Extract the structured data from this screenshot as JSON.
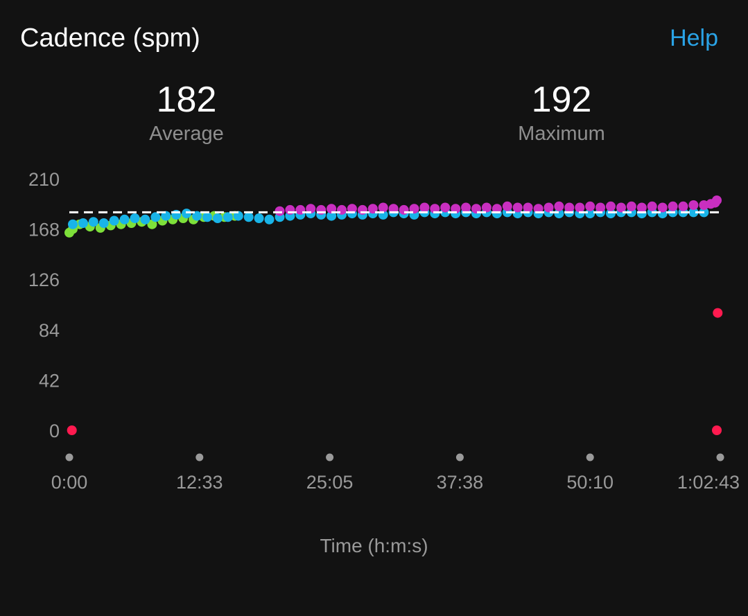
{
  "header": {
    "title": "Cadence (spm)",
    "help_label": "Help"
  },
  "stats": {
    "average": {
      "value": "182",
      "label": "Average"
    },
    "maximum": {
      "value": "192",
      "label": "Maximum"
    }
  },
  "colors": {
    "background": "#121212",
    "link": "#2aa3e6",
    "zone_green": "#7ee03a",
    "zone_blue": "#19b4e8",
    "zone_purple": "#c92fc0",
    "zone_red": "#ff1a4f",
    "average_line": "#ffffff"
  },
  "chart_data": {
    "type": "scatter",
    "xlabel": "Time (h:m:s)",
    "ylabel": "",
    "ylim": [
      0,
      210
    ],
    "yticks": [
      0,
      42,
      84,
      126,
      168,
      210
    ],
    "xlim": [
      0,
      3763
    ],
    "xticks": [
      "0:00",
      "12:33",
      "25:05",
      "37:38",
      "50:10",
      "1:02:43"
    ],
    "average_line": 182,
    "grid": false,
    "series": [
      {
        "color": "zone_green",
        "points": [
          [
            0,
            165
          ],
          [
            20,
            168
          ],
          [
            60,
            172
          ],
          [
            120,
            170
          ],
          [
            180,
            169
          ],
          [
            240,
            171
          ],
          [
            300,
            172
          ],
          [
            360,
            173
          ],
          [
            420,
            174
          ],
          [
            480,
            172
          ],
          [
            540,
            175
          ],
          [
            600,
            176
          ],
          [
            660,
            177
          ],
          [
            720,
            176
          ],
          [
            780,
            178
          ],
          [
            840,
            179
          ],
          [
            900,
            178
          ],
          [
            960,
            179
          ]
        ]
      },
      {
        "color": "zone_blue",
        "points": [
          [
            20,
            172
          ],
          [
            80,
            173
          ],
          [
            140,
            174
          ],
          [
            200,
            173
          ],
          [
            260,
            175
          ],
          [
            320,
            176
          ],
          [
            380,
            177
          ],
          [
            440,
            176
          ],
          [
            500,
            178
          ],
          [
            560,
            179
          ],
          [
            620,
            180
          ],
          [
            680,
            181
          ],
          [
            740,
            179
          ],
          [
            800,
            178
          ],
          [
            860,
            177
          ],
          [
            920,
            178
          ],
          [
            980,
            179
          ],
          [
            1040,
            178
          ],
          [
            1100,
            177
          ],
          [
            1160,
            176
          ],
          [
            1220,
            178
          ],
          [
            1280,
            179
          ],
          [
            1340,
            180
          ],
          [
            1400,
            181
          ],
          [
            1460,
            180
          ],
          [
            1520,
            179
          ],
          [
            1580,
            180
          ],
          [
            1640,
            181
          ],
          [
            1700,
            180
          ],
          [
            1760,
            181
          ],
          [
            1820,
            180
          ],
          [
            1880,
            182
          ],
          [
            1940,
            181
          ],
          [
            2000,
            180
          ],
          [
            2060,
            182
          ],
          [
            2120,
            181
          ],
          [
            2180,
            182
          ],
          [
            2240,
            181
          ],
          [
            2300,
            182
          ],
          [
            2360,
            181
          ],
          [
            2420,
            182
          ],
          [
            2480,
            181
          ],
          [
            2540,
            182
          ],
          [
            2600,
            181
          ],
          [
            2660,
            182
          ],
          [
            2720,
            181
          ],
          [
            2780,
            182
          ],
          [
            2840,
            181
          ],
          [
            2900,
            182
          ],
          [
            2960,
            181
          ],
          [
            3020,
            181
          ],
          [
            3080,
            182
          ],
          [
            3140,
            181
          ],
          [
            3200,
            182
          ],
          [
            3260,
            182
          ],
          [
            3320,
            181
          ],
          [
            3380,
            182
          ],
          [
            3440,
            181
          ],
          [
            3500,
            182
          ],
          [
            3560,
            182
          ],
          [
            3620,
            182
          ],
          [
            3680,
            182
          ]
        ]
      },
      {
        "color": "zone_purple",
        "points": [
          [
            1220,
            183
          ],
          [
            1280,
            184
          ],
          [
            1340,
            184
          ],
          [
            1400,
            185
          ],
          [
            1460,
            184
          ],
          [
            1520,
            185
          ],
          [
            1580,
            184
          ],
          [
            1640,
            185
          ],
          [
            1700,
            184
          ],
          [
            1760,
            185
          ],
          [
            1820,
            186
          ],
          [
            1880,
            185
          ],
          [
            1940,
            184
          ],
          [
            2000,
            185
          ],
          [
            2060,
            186
          ],
          [
            2120,
            185
          ],
          [
            2180,
            186
          ],
          [
            2240,
            185
          ],
          [
            2300,
            186
          ],
          [
            2360,
            185
          ],
          [
            2420,
            186
          ],
          [
            2480,
            185
          ],
          [
            2540,
            187
          ],
          [
            2600,
            186
          ],
          [
            2660,
            186
          ],
          [
            2720,
            185
          ],
          [
            2780,
            186
          ],
          [
            2840,
            187
          ],
          [
            2900,
            186
          ],
          [
            2960,
            186
          ],
          [
            3020,
            187
          ],
          [
            3080,
            186
          ],
          [
            3140,
            187
          ],
          [
            3200,
            186
          ],
          [
            3260,
            187
          ],
          [
            3320,
            186
          ],
          [
            3380,
            187
          ],
          [
            3440,
            186
          ],
          [
            3500,
            187
          ],
          [
            3560,
            187
          ],
          [
            3620,
            188
          ],
          [
            3680,
            188
          ],
          [
            3720,
            189
          ],
          [
            3745,
            190
          ],
          [
            3755,
            192
          ]
        ]
      },
      {
        "color": "zone_red",
        "points": [
          [
            15,
            0
          ],
          [
            3755,
            0
          ],
          [
            3760,
            98
          ]
        ]
      }
    ]
  }
}
